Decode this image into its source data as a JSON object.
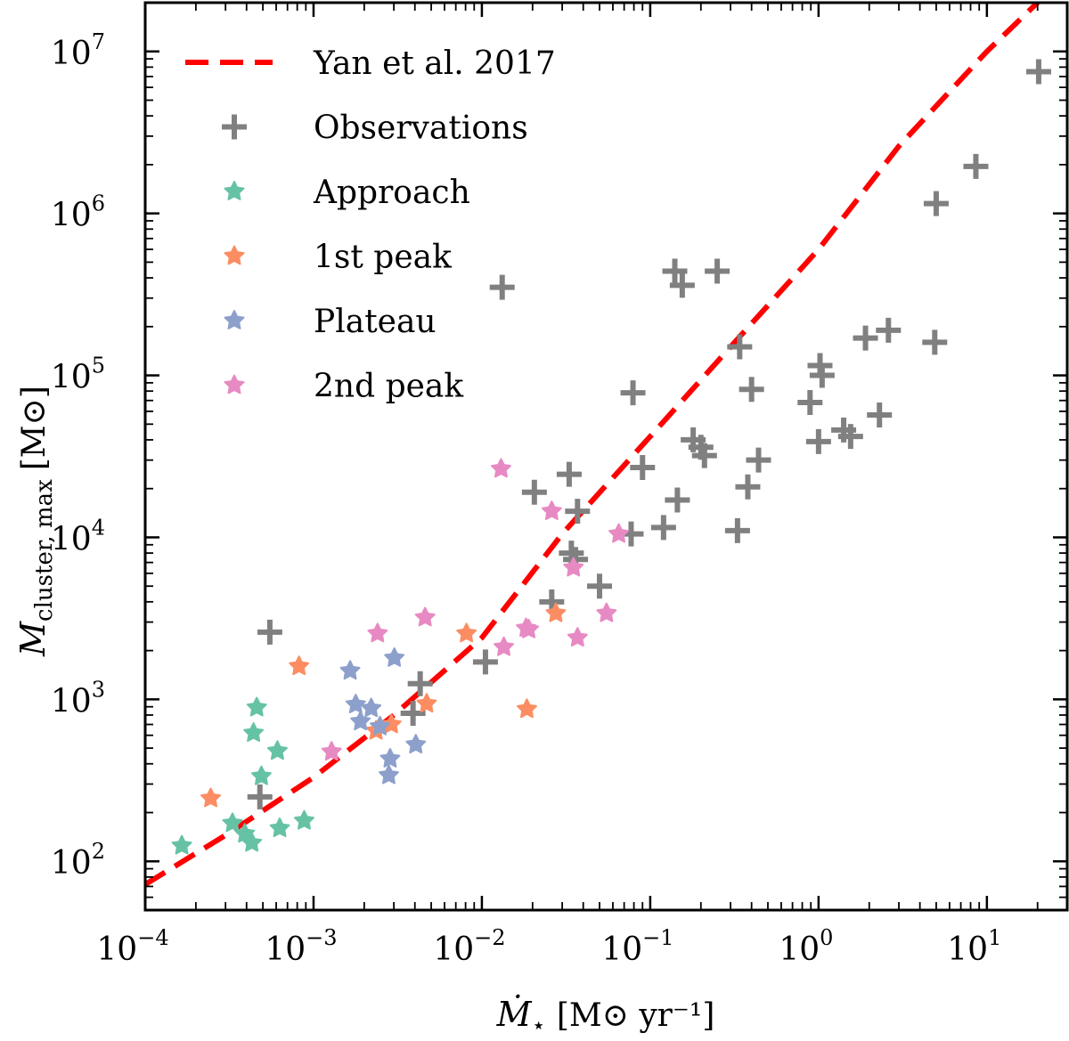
{
  "chart_data": {
    "type": "scatter",
    "xscale": "log",
    "yscale": "log",
    "xlim": [
      0.0001,
      30
    ],
    "ylim": [
      50,
      20000000
    ],
    "xlabel": {
      "symbol": "Ṁ",
      "sub": "⋆",
      "unit": "[M⊙ yr⁻¹]"
    },
    "ylabel": {
      "symbol": "M",
      "sub": "cluster, max",
      "unit": "[M⊙]"
    },
    "xticks": [
      {
        "base": "10",
        "exp": "−4",
        "value": 0.0001
      },
      {
        "base": "10",
        "exp": "−3",
        "value": 0.001
      },
      {
        "base": "10",
        "exp": "−2",
        "value": 0.01
      },
      {
        "base": "10",
        "exp": "−1",
        "value": 0.1
      },
      {
        "base": "10",
        "exp": "0",
        "value": 1
      },
      {
        "base": "10",
        "exp": "1",
        "value": 10
      }
    ],
    "yticks": [
      {
        "base": "10",
        "exp": "2",
        "value": 100
      },
      {
        "base": "10",
        "exp": "3",
        "value": 1000
      },
      {
        "base": "10",
        "exp": "4",
        "value": 10000
      },
      {
        "base": "10",
        "exp": "5",
        "value": 100000
      },
      {
        "base": "10",
        "exp": "6",
        "value": 1000000
      },
      {
        "base": "10",
        "exp": "7",
        "value": 10000000
      }
    ],
    "legend_position": "top-left",
    "line": {
      "name": "Yan et al. 2017",
      "color": "#ff0000",
      "style": "dashed",
      "points": [
        [
          0.0001,
          72
        ],
        [
          0.0003,
          145
        ],
        [
          0.001,
          330
        ],
        [
          0.003,
          800
        ],
        [
          0.01,
          2400
        ],
        [
          0.03,
          10500
        ],
        [
          0.1,
          42000
        ],
        [
          0.3,
          150000
        ],
        [
          1,
          600000
        ],
        [
          3,
          2600000
        ],
        [
          10,
          10000000
        ],
        [
          21,
          21000000
        ]
      ]
    },
    "series": [
      {
        "name": "Observations",
        "marker": "plus",
        "color": "#808080",
        "points": [
          [
            0.00048,
            250
          ],
          [
            0.00055,
            2600
          ],
          [
            0.0039,
            820
          ],
          [
            0.0043,
            1250
          ],
          [
            0.0105,
            1700
          ],
          [
            0.0132,
            350000
          ],
          [
            0.0205,
            19000
          ],
          [
            0.026,
            4000
          ],
          [
            0.033,
            24500
          ],
          [
            0.034,
            8000
          ],
          [
            0.036,
            7300
          ],
          [
            0.037,
            14500
          ],
          [
            0.05,
            5000
          ],
          [
            0.077,
            10500
          ],
          [
            0.079,
            78000
          ],
          [
            0.09,
            27000
          ],
          [
            0.12,
            11500
          ],
          [
            0.14,
            440000
          ],
          [
            0.145,
            17000
          ],
          [
            0.155,
            360000
          ],
          [
            0.18,
            40000
          ],
          [
            0.2,
            36000
          ],
          [
            0.21,
            32000
          ],
          [
            0.25,
            440000
          ],
          [
            0.33,
            11000
          ],
          [
            0.34,
            150000
          ],
          [
            0.38,
            20500
          ],
          [
            0.4,
            82000
          ],
          [
            0.44,
            30000
          ],
          [
            0.89,
            68000
          ],
          [
            1.0,
            39000
          ],
          [
            1.02,
            115000
          ],
          [
            1.05,
            100000
          ],
          [
            1.41,
            46000
          ],
          [
            1.55,
            42000
          ],
          [
            1.9,
            170000
          ],
          [
            2.3,
            57000
          ],
          [
            2.6,
            190000
          ],
          [
            4.9,
            160000
          ],
          [
            5.0,
            1150000
          ],
          [
            8.6,
            1950000
          ],
          [
            20.3,
            7500000
          ]
        ]
      },
      {
        "name": "Approach",
        "marker": "star",
        "color": "#66c2a5",
        "points": [
          [
            0.000165,
            125
          ],
          [
            0.00033,
            172
          ],
          [
            0.00039,
            148
          ],
          [
            0.00043,
            130
          ],
          [
            0.00044,
            620
          ],
          [
            0.00046,
            890
          ],
          [
            0.00049,
            335
          ],
          [
            0.00061,
            480
          ],
          [
            0.00063,
            160
          ],
          [
            0.00088,
            178
          ]
        ]
      },
      {
        "name": "1st peak",
        "marker": "star",
        "color": "#fc8d62",
        "points": [
          [
            0.000245,
            245
          ],
          [
            0.00082,
            1600
          ],
          [
            0.00235,
            640
          ],
          [
            0.0029,
            700
          ],
          [
            0.0047,
            940
          ],
          [
            0.0081,
            2550
          ],
          [
            0.0185,
            870
          ],
          [
            0.0275,
            3400
          ]
        ]
      },
      {
        "name": "Plateau",
        "marker": "star",
        "color": "#8da0cb",
        "points": [
          [
            0.00165,
            1500
          ],
          [
            0.00178,
            930
          ],
          [
            0.0019,
            730
          ],
          [
            0.0022,
            880
          ],
          [
            0.00248,
            680
          ],
          [
            0.0028,
            340
          ],
          [
            0.00285,
            430
          ],
          [
            0.00302,
            1800
          ],
          [
            0.00405,
            525
          ]
        ]
      },
      {
        "name": "2nd peak",
        "marker": "star",
        "color": "#e78ac3",
        "points": [
          [
            0.00128,
            475
          ],
          [
            0.0024,
            2550
          ],
          [
            0.0046,
            3200
          ],
          [
            0.013,
            26500
          ],
          [
            0.0135,
            2100
          ],
          [
            0.0183,
            2750
          ],
          [
            0.019,
            2700
          ],
          [
            0.026,
            14500
          ],
          [
            0.035,
            6500
          ],
          [
            0.037,
            2400
          ],
          [
            0.055,
            3400
          ],
          [
            0.065,
            10500
          ]
        ]
      }
    ]
  }
}
